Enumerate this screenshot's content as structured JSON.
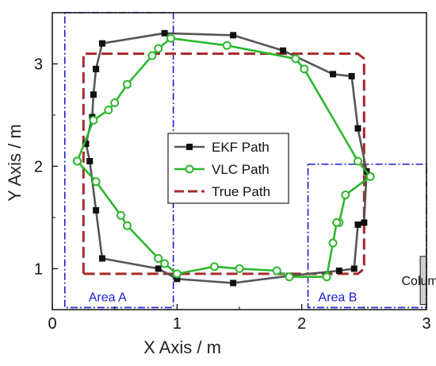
{
  "chart_data": {
    "type": "line",
    "xlabel": "X Axis / m",
    "ylabel": "Y Axis / m",
    "xlim": [
      0,
      3
    ],
    "ylim": [
      0.6,
      3.5
    ],
    "x_ticks": [
      0,
      1,
      2,
      3
    ],
    "y_ticks": [
      1,
      2,
      3
    ],
    "grid": false,
    "legend_position": "center",
    "series": [
      {
        "name": "EKF Path",
        "color": "#555555",
        "marker": "square",
        "line_style": "solid",
        "points": [
          [
            0.35,
            2.95
          ],
          [
            0.4,
            3.2
          ],
          [
            0.9,
            3.3
          ],
          [
            1.45,
            3.28
          ],
          [
            1.85,
            3.13
          ],
          [
            2.25,
            2.9
          ],
          [
            2.4,
            2.88
          ],
          [
            2.45,
            2.37
          ],
          [
            2.52,
            1.95
          ],
          [
            2.5,
            1.45
          ],
          [
            2.45,
            1.43
          ],
          [
            2.42,
            1.0
          ],
          [
            2.3,
            0.98
          ],
          [
            1.9,
            0.93
          ],
          [
            1.45,
            0.86
          ],
          [
            1.0,
            0.9
          ],
          [
            0.85,
            1.0
          ],
          [
            0.4,
            1.1
          ],
          [
            0.35,
            1.57
          ],
          [
            0.3,
            2.05
          ],
          [
            0.27,
            2.22
          ],
          [
            0.32,
            2.48
          ],
          [
            0.33,
            2.7
          ],
          [
            0.35,
            2.95
          ]
        ]
      },
      {
        "name": "VLC Path",
        "color": "#2db82d",
        "marker": "circle-open",
        "line_style": "solid",
        "points": [
          [
            0.2,
            2.05
          ],
          [
            0.33,
            2.45
          ],
          [
            0.45,
            2.55
          ],
          [
            0.5,
            2.62
          ],
          [
            0.6,
            2.8
          ],
          [
            0.8,
            3.08
          ],
          [
            0.85,
            3.15
          ],
          [
            0.95,
            3.25
          ],
          [
            1.4,
            3.18
          ],
          [
            1.95,
            3.05
          ],
          [
            2.02,
            2.95
          ],
          [
            2.45,
            2.05
          ],
          [
            2.55,
            1.9
          ],
          [
            2.35,
            1.72
          ],
          [
            2.3,
            1.45
          ],
          [
            2.28,
            1.45
          ],
          [
            2.25,
            1.25
          ],
          [
            2.2,
            0.92
          ],
          [
            1.9,
            0.92
          ],
          [
            1.8,
            0.98
          ],
          [
            1.5,
            1.0
          ],
          [
            1.3,
            1.02
          ],
          [
            1.0,
            0.95
          ],
          [
            0.9,
            1.05
          ],
          [
            0.85,
            1.1
          ],
          [
            0.6,
            1.42
          ],
          [
            0.55,
            1.52
          ],
          [
            0.35,
            1.85
          ],
          [
            0.2,
            2.05
          ]
        ]
      },
      {
        "name": "True Path",
        "color": "#a52a2a",
        "marker": "none",
        "line_style": "dashed",
        "points": [
          [
            0.25,
            0.95
          ],
          [
            0.25,
            3.1
          ],
          [
            2.45,
            3.1
          ],
          [
            2.5,
            3.05
          ],
          [
            2.5,
            1.0
          ],
          [
            2.45,
            0.95
          ],
          [
            0.25,
            0.95
          ]
        ]
      }
    ],
    "regions": [
      {
        "label": "Area A",
        "color": "#1a1acc",
        "x": [
          0.1,
          0.97
        ],
        "y": [
          0.62,
          3.5
        ]
      },
      {
        "label": "Area B",
        "color": "#1a1acc",
        "x": [
          2.05,
          3.0
        ],
        "y": [
          0.62,
          2.02
        ]
      }
    ],
    "obstacle": {
      "label": "Column",
      "color": "#d0d0d0",
      "x": [
        2.95,
        3.6
      ],
      "y": [
        0.65,
        1.12
      ]
    }
  }
}
